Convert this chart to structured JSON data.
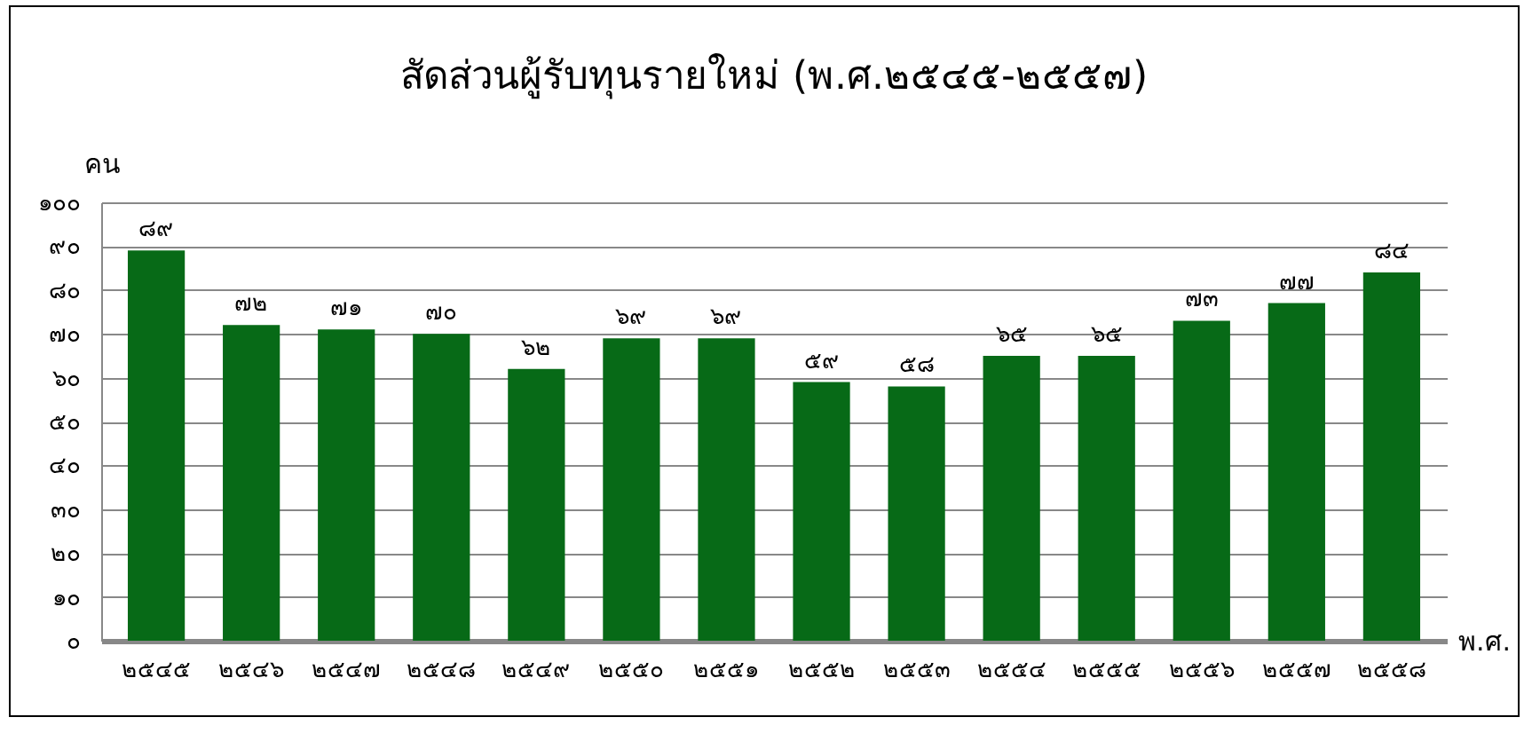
{
  "chart_data": {
    "type": "bar",
    "title": "สัดส่วนผู้รับทุนรายใหม่ (พ.ศ.๒๕๔๕-๒๕๕๗)",
    "xlabel": "พ.ศ.",
    "ylabel": "คน",
    "categories": [
      "๒๕๔๕",
      "๒๕๔๖",
      "๒๕๔๗",
      "๒๕๔๘",
      "๒๕๔๙",
      "๒๕๕๐",
      "๒๕๕๑",
      "๒๕๕๒",
      "๒๕๕๓",
      "๒๕๕๔",
      "๒๕๕๕",
      "๒๕๕๖",
      "๒๕๕๗",
      "๒๕๕๘"
    ],
    "values": [
      89,
      72,
      71,
      70,
      62,
      69,
      69,
      59,
      58,
      65,
      65,
      73,
      77,
      84
    ],
    "value_labels": [
      "๘๙",
      "๗๒",
      "๗๑",
      "๗๐",
      "๖๒",
      "๖๙",
      "๖๙",
      "๕๙",
      "๕๘",
      "๖๕",
      "๖๕",
      "๗๓",
      "๗๗",
      "๘๔"
    ],
    "color": "#076a17",
    "ylim": [
      0,
      100
    ],
    "yticks": [
      {
        "value": 0,
        "label": "๐"
      },
      {
        "value": 10,
        "label": "๑๐"
      },
      {
        "value": 20,
        "label": "๒๐"
      },
      {
        "value": 30,
        "label": "๓๐"
      },
      {
        "value": 40,
        "label": "๔๐"
      },
      {
        "value": 50,
        "label": "๕๐"
      },
      {
        "value": 60,
        "label": "๖๐"
      },
      {
        "value": 70,
        "label": "๗๐"
      },
      {
        "value": 80,
        "label": "๘๐"
      },
      {
        "value": 90,
        "label": "๙๐"
      },
      {
        "value": 100,
        "label": "๑๐๐"
      }
    ],
    "grid": "y"
  }
}
